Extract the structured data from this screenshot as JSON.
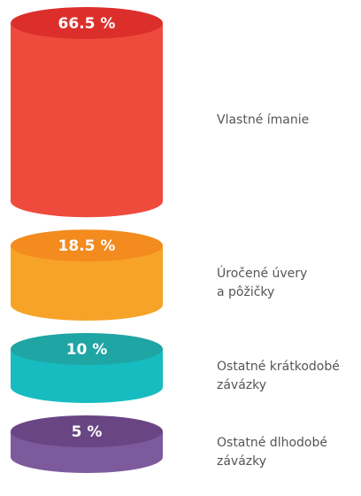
{
  "chart_data": {
    "type": "cylinder",
    "categories": [
      "Vlastné ímanie",
      "Úročené úvery\na pôžičky",
      "Ostatné krátkodobé\nzávázky",
      "Ostatné dlhodobé\nzávázky"
    ],
    "values": [
      66.5,
      18.5,
      10,
      5
    ],
    "value_labels": [
      "66.5 %",
      "18.5 %",
      "10 %",
      "5 %"
    ],
    "colors": [
      "#ee4b3d",
      "#f7a328",
      "#17bcc0",
      "#7d5a9c"
    ],
    "top_colors": [
      "#dc2f2b",
      "#f38b1f",
      "#1fa5a3",
      "#6a4584"
    ]
  }
}
